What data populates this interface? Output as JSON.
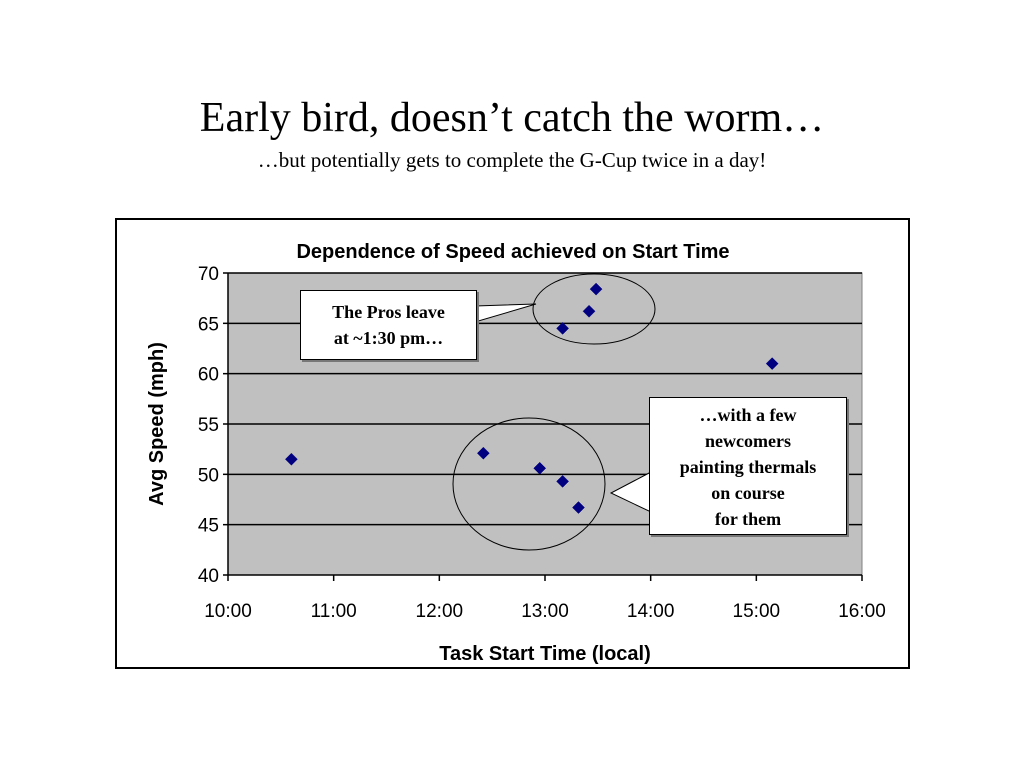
{
  "slide": {
    "title": "Early bird, doesn’t catch the worm…",
    "subtitle": "…but potentially gets to complete the G-Cup twice in a day!"
  },
  "callouts": {
    "pros": [
      "The Pros leave",
      "at ~1:30 pm…"
    ],
    "newcomers": [
      "…with a few",
      "newcomers",
      "painting thermals",
      "on course",
      "for them"
    ]
  },
  "colors": {
    "plot_area": "#c0c0c0",
    "marker": "#000080",
    "gridline": "#000000"
  },
  "chart_data": {
    "type": "scatter",
    "title": "Dependence of Speed achieved on Start Time",
    "xlabel": "Task Start Time (local)",
    "ylabel": "Avg Speed (mph)",
    "xlim": [
      "10:00",
      "16:00"
    ],
    "ylim": [
      40,
      70
    ],
    "x_ticks": [
      "10:00",
      "11:00",
      "12:00",
      "13:00",
      "14:00",
      "15:00",
      "16:00"
    ],
    "y_ticks": [
      40,
      45,
      50,
      55,
      60,
      65,
      70
    ],
    "grid": "horizontal major lines",
    "legend": "none",
    "marker": "diamond",
    "points": [
      {
        "x": "10:36",
        "y": 51.5
      },
      {
        "x": "12:25",
        "y": 52.1
      },
      {
        "x": "12:57",
        "y": 50.6
      },
      {
        "x": "13:10",
        "y": 64.5
      },
      {
        "x": "13:10",
        "y": 49.3
      },
      {
        "x": "13:19",
        "y": 46.7
      },
      {
        "x": "13:25",
        "y": 66.2
      },
      {
        "x": "13:29",
        "y": 68.4
      },
      {
        "x": "15:09",
        "y": 61.0
      }
    ]
  }
}
